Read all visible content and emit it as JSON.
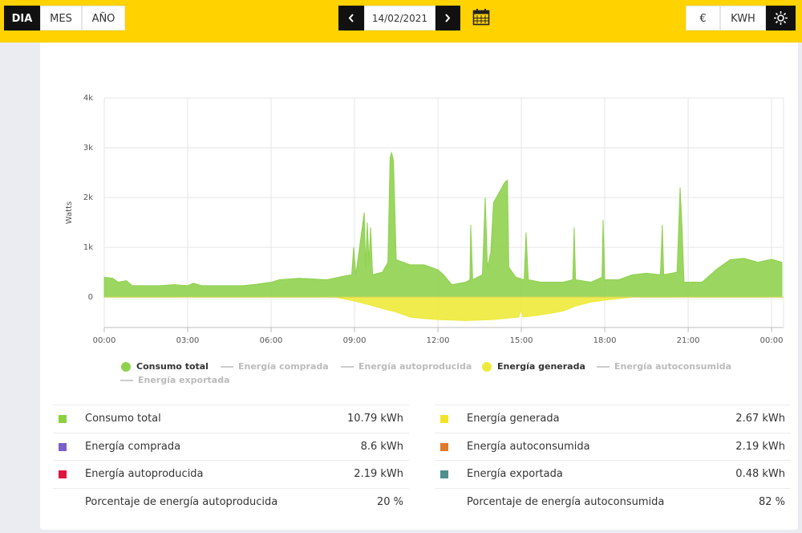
{
  "topbar": {
    "periods": [
      "DIA",
      "MES",
      "AÑO"
    ],
    "active_period": 0,
    "date": "14/02/2021",
    "units": [
      "€",
      "KWH"
    ]
  },
  "chart_data": {
    "type": "area",
    "y_label": "Watts",
    "xlim": [
      0,
      24.43
    ],
    "xticks": [
      {
        "value": 0,
        "label": "00:00"
      },
      {
        "value": 3,
        "label": "03:00"
      },
      {
        "value": 6,
        "label": "06:00"
      },
      {
        "value": 9,
        "label": "09:00"
      },
      {
        "value": 12,
        "label": "12:00"
      },
      {
        "value": 15,
        "label": "15:00"
      },
      {
        "value": 18,
        "label": "18:00"
      },
      {
        "value": 21,
        "label": "21:00"
      },
      {
        "value": 24,
        "label": "00:00"
      }
    ],
    "ylim": [
      -610,
      4000
    ],
    "yticks": [
      0,
      {
        "value": 1000,
        "label": "1k"
      },
      {
        "value": 2000,
        "label": "2k"
      },
      {
        "value": 3000,
        "label": "3k"
      },
      {
        "value": 4000,
        "label": "4k"
      }
    ],
    "grid": true,
    "series": [
      {
        "name": "Consumo total",
        "color": "#8fd14f",
        "visible": true,
        "x": [
          0,
          0.3,
          0.5,
          0.8,
          1,
          2,
          2.5,
          3,
          3.2,
          3.5,
          5,
          5.5,
          6,
          6.3,
          7,
          8,
          8.6,
          8.9,
          8.97,
          9.05,
          9.35,
          9.4,
          9.46,
          9.52,
          9.58,
          9.65,
          10,
          10.2,
          10.28,
          10.33,
          10.4,
          10.5,
          11,
          11.5,
          12,
          12.2,
          12.5,
          13,
          13.15,
          13.18,
          13.25,
          13.6,
          13.7,
          13.78,
          13.9,
          14.0,
          14.2,
          14.4,
          14.5,
          14.55,
          14.8,
          15.1,
          15.17,
          15.25,
          15.7,
          16.5,
          16.85,
          16.9,
          16.95,
          17.5,
          17.9,
          17.94,
          18.0,
          18.5,
          19,
          19.5,
          20,
          20.07,
          20.12,
          20.6,
          20.71,
          20.78,
          20.85,
          21.5,
          22,
          22.5,
          23,
          23.5,
          24,
          24.37
        ],
        "values": [
          400,
          380,
          300,
          330,
          230,
          230,
          250,
          230,
          280,
          230,
          230,
          260,
          300,
          350,
          380,
          350,
          420,
          450,
          1000,
          450,
          1700,
          600,
          1500,
          700,
          1400,
          450,
          500,
          700,
          2800,
          2900,
          2750,
          750,
          650,
          650,
          550,
          450,
          250,
          300,
          350,
          1450,
          350,
          450,
          2000,
          600,
          900,
          1900,
          2100,
          2300,
          2350,
          600,
          400,
          350,
          1300,
          350,
          300,
          300,
          350,
          1400,
          350,
          300,
          400,
          1550,
          350,
          350,
          450,
          480,
          450,
          1450,
          450,
          500,
          2200,
          1400,
          300,
          300,
          550,
          750,
          780,
          700,
          760,
          700
        ]
      },
      {
        "name": "Energía comprada",
        "color": "#bbbbbb",
        "visible": false,
        "x": null,
        "values": null
      },
      {
        "name": "Energía autoproducida",
        "color": "#bbbbbb",
        "visible": false,
        "x": null,
        "values": null
      },
      {
        "name": "Energía generada",
        "color": "#eeea3b",
        "visible": true,
        "x": [
          8.3,
          9,
          9.5,
          10,
          10.5,
          11,
          11.5,
          12,
          13,
          14,
          14.9,
          15,
          15.05,
          15.5,
          16,
          16.5,
          17,
          17.5,
          18,
          18.5,
          19
        ],
        "values": [
          0,
          -80,
          -150,
          -230,
          -300,
          -400,
          -430,
          -450,
          -470,
          -450,
          -400,
          -250,
          -400,
          -370,
          -330,
          -280,
          -170,
          -100,
          -60,
          -30,
          0
        ]
      },
      {
        "name": "Energía autoconsumida",
        "color": "#bbbbbb",
        "visible": false,
        "x": null,
        "values": null
      },
      {
        "name": "Energía exportada",
        "color": "#bbbbbb",
        "visible": false,
        "x": null,
        "values": null
      }
    ]
  },
  "summary": {
    "left": [
      {
        "label": "Consumo total",
        "value": "10.79 kWh",
        "color": "#8cd13f"
      },
      {
        "label": "Energía comprada",
        "value": "8.6 kWh",
        "color": "#7b5fc9"
      },
      {
        "label": "Energía autoproducida",
        "value": "2.19 kWh",
        "color": "#e0143c"
      },
      {
        "label": "Porcentaje de energía autoproducida",
        "value": "20 %"
      }
    ],
    "right": [
      {
        "label": "Energía generada",
        "value": "2.67 kWh",
        "color": "#f2e32a"
      },
      {
        "label": "Energía autoconsumida",
        "value": "2.19 kWh",
        "color": "#e07a2a"
      },
      {
        "label": "Energía exportada",
        "value": "0.48 kWh",
        "color": "#4f8f8f"
      },
      {
        "label": "Porcentaje de energía autoconsumida",
        "value": "82 %"
      }
    ]
  }
}
